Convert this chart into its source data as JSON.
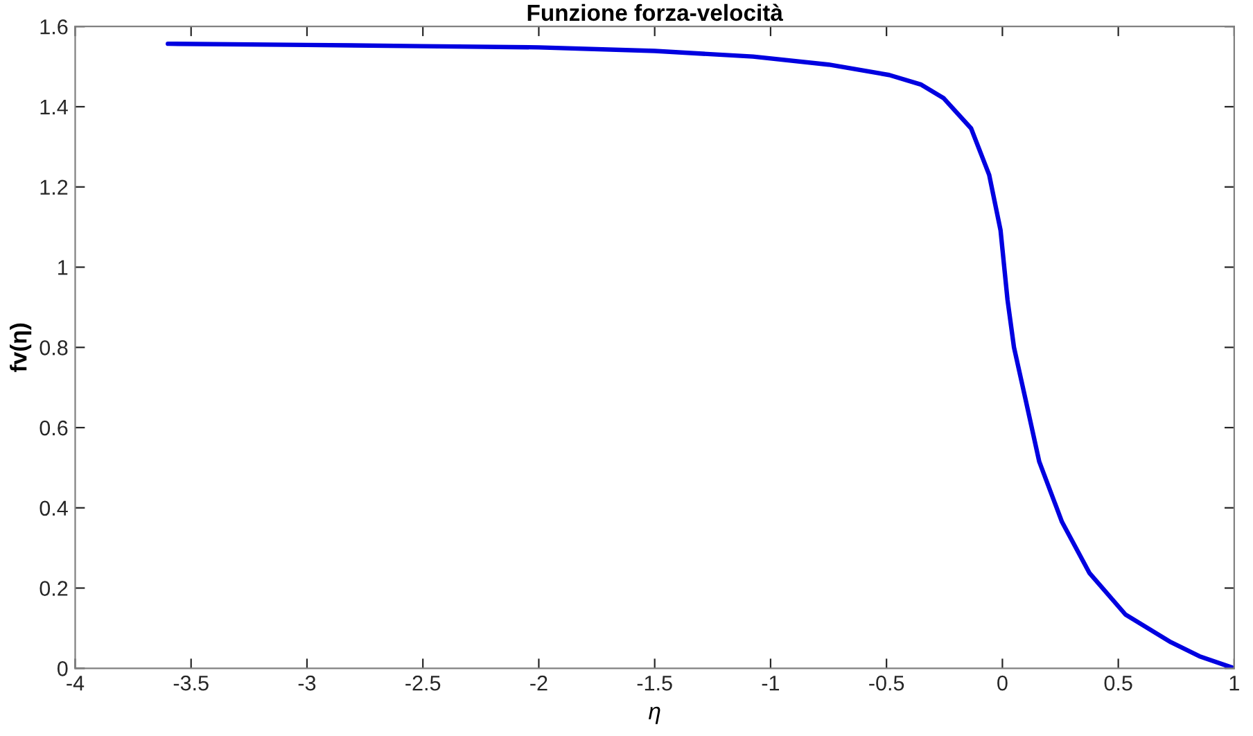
{
  "chart_data": {
    "type": "line",
    "title": "Funzione forza-velocità",
    "xlabel": "η",
    "ylabel": "fv(η)",
    "xlim": [
      -4,
      1
    ],
    "ylim": [
      0,
      1.6
    ],
    "xticks": [
      -4,
      -3.5,
      -3,
      -2.5,
      -2,
      -1.5,
      -1,
      -0.5,
      0,
      0.5,
      1
    ],
    "yticks": [
      0,
      0.2,
      0.4,
      0.6,
      0.8,
      1,
      1.2,
      1.4,
      1.6
    ],
    "grid": false,
    "line_style": "solid",
    "marker": "none",
    "series": [
      {
        "color": "#0000e0",
        "x": [
          -3.6,
          -3.0,
          -2.5,
          -2.0,
          -1.5,
          -1.076,
          -0.75,
          -0.488,
          -0.35,
          -0.253,
          -0.135,
          -0.057,
          -0.008,
          0.022,
          0.05,
          0.1,
          0.159,
          0.257,
          0.375,
          0.531,
          0.727,
          0.85,
          1.0
        ],
        "values": [
          1.557,
          1.554,
          1.551,
          1.548,
          1.539,
          1.525,
          1.505,
          1.479,
          1.455,
          1.421,
          1.346,
          1.23,
          1.092,
          0.919,
          0.8,
          0.67,
          0.515,
          0.365,
          0.238,
          0.134,
          0.065,
          0.03,
          0.0
        ]
      }
    ]
  }
}
